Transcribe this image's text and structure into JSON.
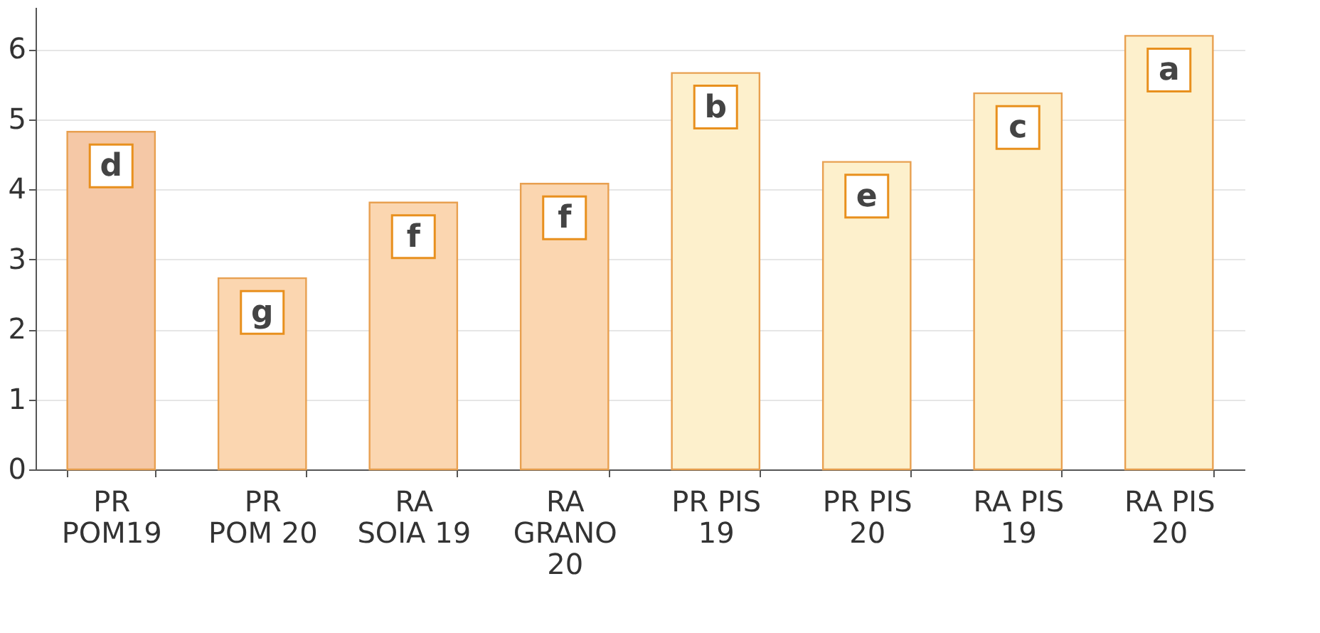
{
  "chart_data": {
    "type": "bar",
    "categories": [
      "PR\nPOM19",
      "PR\nPOM 20",
      "RA\nSOIA 19",
      "RA\nGRANO\n20",
      "PR PIS\n19",
      "PR PIS\n20",
      "RA PIS\n19",
      "RA PIS\n20"
    ],
    "values": [
      4.82,
      2.73,
      3.81,
      4.08,
      5.66,
      4.39,
      5.37,
      6.19
    ],
    "colors": [
      "#f5c8a6",
      "#fbd6b0",
      "#fbd6b0",
      "#fbd6b0",
      "#fdf0cc",
      "#fdf0cc",
      "#fdf0cc",
      "#fdf0cc"
    ],
    "ylim": [
      0,
      6.6
    ],
    "yticks": [
      0,
      1,
      2,
      3,
      4,
      5,
      6
    ],
    "grid": "y",
    "annotations": [
      {
        "text": "d",
        "x": "PR\nPOM19",
        "y": 4.82
      },
      {
        "text": "g",
        "x": "PR\nPOM 20",
        "y": 2.73
      },
      {
        "text": "f",
        "x": "RA\nSOIA 19",
        "y": 3.81
      },
      {
        "text": "f",
        "x": "RA\nGRANO\n20",
        "y": 4.08
      },
      {
        "text": "b",
        "x": "PR PIS\n19",
        "y": 5.66
      },
      {
        "text": "e",
        "x": "PR PIS\n20",
        "y": 4.39
      },
      {
        "text": "c",
        "x": "RA PIS\n19",
        "y": 5.37
      },
      {
        "text": "a",
        "x": "RA PIS\n20",
        "y": 6.19
      }
    ]
  }
}
